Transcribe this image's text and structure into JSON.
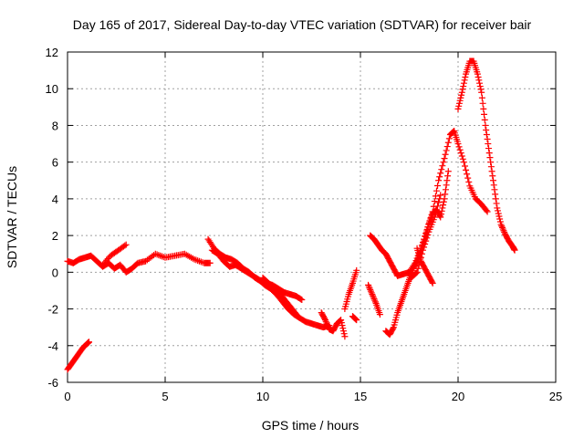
{
  "chart_data": {
    "type": "scatter",
    "title": "Day 165 of 2017, Sidereal Day-to-day VTEC variation (SDTVAR) for receiver bair",
    "xlabel": "GPS time / hours",
    "ylabel": "SDTVAR / TECUs",
    "xlim": [
      0,
      25
    ],
    "ylim": [
      -6,
      12
    ],
    "xticks": [
      "0",
      "5",
      "10",
      "15",
      "20",
      "25"
    ],
    "yticks": [
      "-6",
      "-4",
      "-2",
      "0",
      "2",
      "4",
      "6",
      "8",
      "10",
      "12"
    ],
    "grid": true,
    "marker": "plus",
    "color": "#ff0000",
    "series": [
      {
        "x": [
          0.0,
          0.2,
          0.4,
          0.6,
          0.8,
          1.0,
          1.1
        ],
        "y": [
          -5.3,
          -5.0,
          -4.7,
          -4.4,
          -4.1,
          -3.9,
          -3.8
        ]
      },
      {
        "x": [
          0.0,
          0.3,
          0.6,
          0.9,
          1.2,
          1.5,
          1.8,
          2.1,
          2.4,
          2.7,
          3.0,
          3.3,
          3.6,
          4.0,
          4.5,
          5.0,
          5.5,
          6.0,
          6.5,
          7.0,
          7.3
        ],
        "y": [
          0.6,
          0.5,
          0.7,
          0.8,
          0.9,
          0.6,
          0.3,
          0.5,
          0.2,
          0.4,
          0.0,
          0.2,
          0.5,
          0.6,
          1.0,
          0.8,
          0.9,
          1.0,
          0.7,
          0.5,
          0.5
        ]
      },
      {
        "x": [
          1.8,
          2.2,
          2.6,
          3.0
        ],
        "y": [
          0.4,
          0.9,
          1.2,
          1.5
        ]
      },
      {
        "x": [
          7.2,
          7.5,
          7.8,
          8.1,
          8.4,
          8.7,
          9.0,
          9.3,
          9.6,
          9.9,
          10.2,
          10.5,
          10.8,
          11.1,
          11.4,
          11.7,
          12.0
        ],
        "y": [
          1.8,
          1.3,
          1.0,
          0.8,
          0.7,
          0.5,
          0.2,
          0.0,
          -0.3,
          -0.5,
          -0.6,
          -0.7,
          -0.9,
          -1.1,
          -1.2,
          -1.3,
          -1.5
        ]
      },
      {
        "x": [
          7.4,
          7.7,
          8.0,
          8.3,
          8.6,
          8.9,
          9.2,
          9.5,
          9.8,
          10.1,
          10.4,
          10.7,
          11.0,
          11.3,
          11.6,
          11.9,
          12.2,
          12.5,
          12.8,
          13.1,
          13.4
        ],
        "y": [
          1.2,
          1.0,
          0.6,
          0.3,
          0.4,
          0.2,
          0.0,
          -0.2,
          -0.4,
          -0.7,
          -0.9,
          -1.2,
          -1.6,
          -2.0,
          -2.3,
          -2.5,
          -2.7,
          -2.8,
          -2.9,
          -3.0,
          -2.9
        ]
      },
      {
        "x": [
          10.0,
          10.3,
          10.6,
          10.9,
          11.2,
          11.5,
          11.8
        ],
        "y": [
          -0.3,
          -0.6,
          -0.9,
          -1.2,
          -1.6,
          -2.0,
          -2.4
        ]
      },
      {
        "x": [
          13.0,
          13.2,
          13.4,
          13.6,
          13.8,
          14.0,
          14.2
        ],
        "y": [
          -2.2,
          -2.6,
          -3.1,
          -3.2,
          -2.8,
          -2.6,
          -3.5
        ]
      },
      {
        "x": [
          14.2,
          14.4,
          14.6,
          14.8
        ],
        "y": [
          -2.0,
          -1.2,
          -0.6,
          0.1
        ]
      },
      {
        "x": [
          14.6,
          14.8
        ],
        "y": [
          -2.4,
          -2.6
        ]
      },
      {
        "x": [
          15.4,
          15.6,
          15.8,
          16.0
        ],
        "y": [
          -0.7,
          -1.2,
          -1.7,
          -2.3
        ]
      },
      {
        "x": [
          15.5,
          15.7,
          15.9,
          16.1,
          16.3,
          16.5,
          16.7,
          16.9,
          17.2,
          17.5,
          17.8,
          18.1,
          18.4,
          18.7,
          19.0,
          19.3,
          19.6,
          19.8,
          20.0,
          20.3,
          20.6,
          20.9,
          21.2,
          21.5
        ],
        "y": [
          2.0,
          1.8,
          1.5,
          1.2,
          1.0,
          0.6,
          0.2,
          -0.2,
          -0.1,
          0.0,
          0.5,
          1.3,
          2.3,
          3.3,
          5.0,
          6.2,
          7.5,
          7.7,
          7.0,
          6.0,
          4.7,
          4.0,
          3.7,
          3.3
        ]
      },
      {
        "x": [
          16.3,
          16.5,
          16.7,
          16.9,
          17.1,
          17.3,
          17.5,
          17.7,
          17.9,
          18.1,
          18.3,
          18.5,
          18.7,
          18.9,
          19.1,
          19.3,
          19.5
        ],
        "y": [
          -3.2,
          -3.4,
          -3.0,
          -2.2,
          -1.6,
          -1.0,
          -0.4,
          0.2,
          0.6,
          1.2,
          1.8,
          2.6,
          3.2,
          3.4,
          3.0,
          4.0,
          5.5
        ]
      },
      {
        "x": [
          17.6,
          17.9,
          18.2,
          18.5,
          18.8,
          19.1
        ],
        "y": [
          -0.3,
          0.0,
          1.2,
          2.2,
          3.0,
          4.2
        ]
      },
      {
        "x": [
          17.9,
          18.1,
          18.3,
          18.5,
          18.7
        ],
        "y": [
          1.3,
          0.6,
          0.2,
          -0.2,
          -0.6
        ]
      },
      {
        "x": [
          20.0,
          20.2,
          20.4,
          20.6,
          20.8,
          21.0,
          21.2,
          21.4,
          21.6,
          21.8,
          22.0,
          22.2,
          22.4,
          22.6,
          22.8,
          22.9
        ],
        "y": [
          8.9,
          9.8,
          10.8,
          11.5,
          11.5,
          10.8,
          9.8,
          8.0,
          6.5,
          5.0,
          3.5,
          2.6,
          2.1,
          1.7,
          1.4,
          1.2
        ]
      }
    ]
  }
}
